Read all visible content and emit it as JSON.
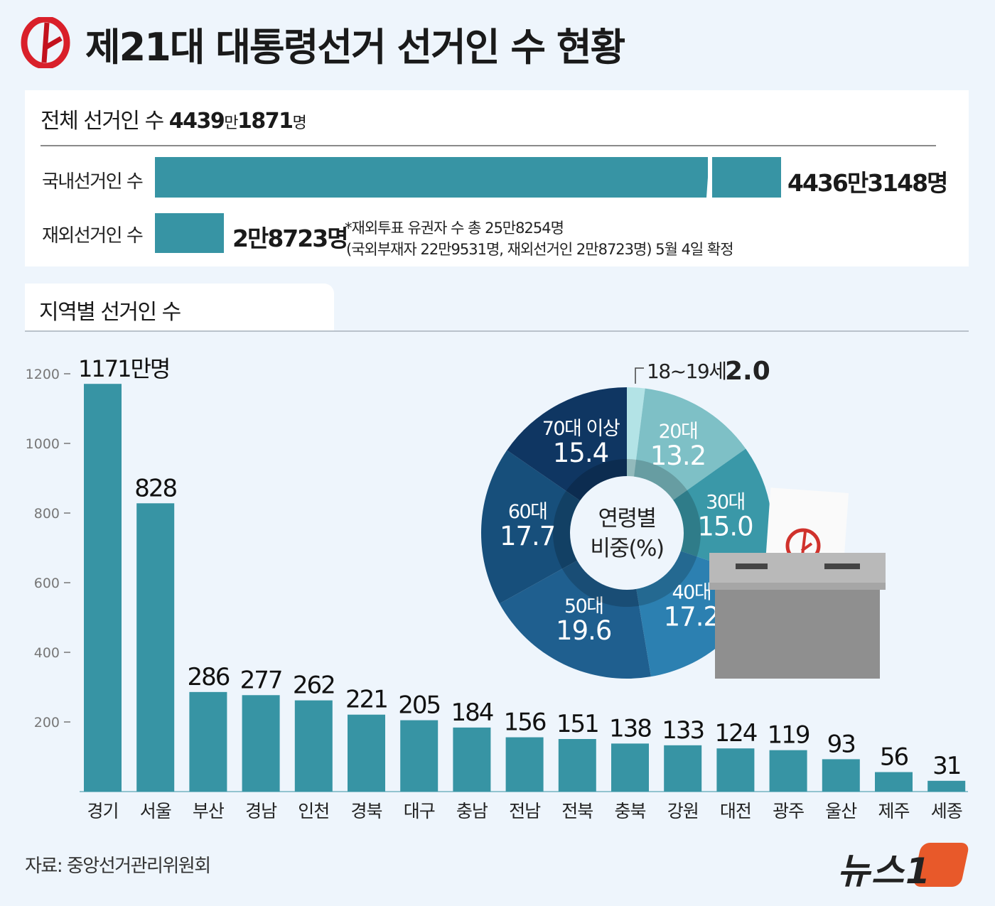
{
  "header": {
    "title": "제21대 대통령선거 선거인 수 현황",
    "logo": "election-commission-logo"
  },
  "summary": {
    "total_label": "전체 선거인 수",
    "total_value_a": "4439",
    "total_unit_a": "만",
    "total_value_b": "1871",
    "total_unit_b": "명",
    "domestic_label": "국내선거인 수",
    "domestic_value": "4436만3148명",
    "overseas_label": "재외선거인 수",
    "overseas_value": "2만8723명",
    "note_line1": "*재외투표 유권자 수 총 25만8254명",
    "note_line2": "(국외부재자 22만9531명, 재외선거인 2만8723명) 5월 4일 확정",
    "bar_color": "#3794a4"
  },
  "section": {
    "title": "지역별 선거인 수"
  },
  "chart_data": [
    {
      "type": "bar",
      "title": "지역별 선거인 수",
      "unit": "만명",
      "categories": [
        "경기",
        "서울",
        "부산",
        "경남",
        "인천",
        "경북",
        "대구",
        "충남",
        "전남",
        "전북",
        "충북",
        "강원",
        "대전",
        "광주",
        "울산",
        "제주",
        "세종"
      ],
      "values": [
        1171,
        828,
        286,
        277,
        262,
        221,
        205,
        184,
        156,
        151,
        138,
        133,
        124,
        119,
        93,
        56,
        31
      ],
      "value_labels": [
        "1171만명",
        "828",
        "286",
        "277",
        "262",
        "221",
        "205",
        "184",
        "156",
        "151",
        "138",
        "133",
        "124",
        "119",
        "93",
        "56",
        "31"
      ],
      "yticks": [
        200,
        400,
        600,
        800,
        1000,
        1200
      ],
      "ylim": [
        0,
        1200
      ],
      "grid": false,
      "color": "#3794a4"
    },
    {
      "type": "pie",
      "title": "연령별",
      "subtitle": "비중(%)",
      "categories": [
        "18~19세",
        "20대",
        "30대",
        "40대",
        "50대",
        "60대",
        "70대 이상"
      ],
      "values": [
        2.0,
        13.2,
        15.0,
        17.2,
        19.6,
        17.7,
        15.4
      ],
      "colors": [
        "#b3e3e6",
        "#7ec0c6",
        "#3a98a8",
        "#2c80b1",
        "#1f5f8f",
        "#174f7b",
        "#0f3662"
      ],
      "donut": true
    }
  ],
  "footer": {
    "source": "자료: 중앙선거관리위원회",
    "brand": "뉴스1"
  }
}
